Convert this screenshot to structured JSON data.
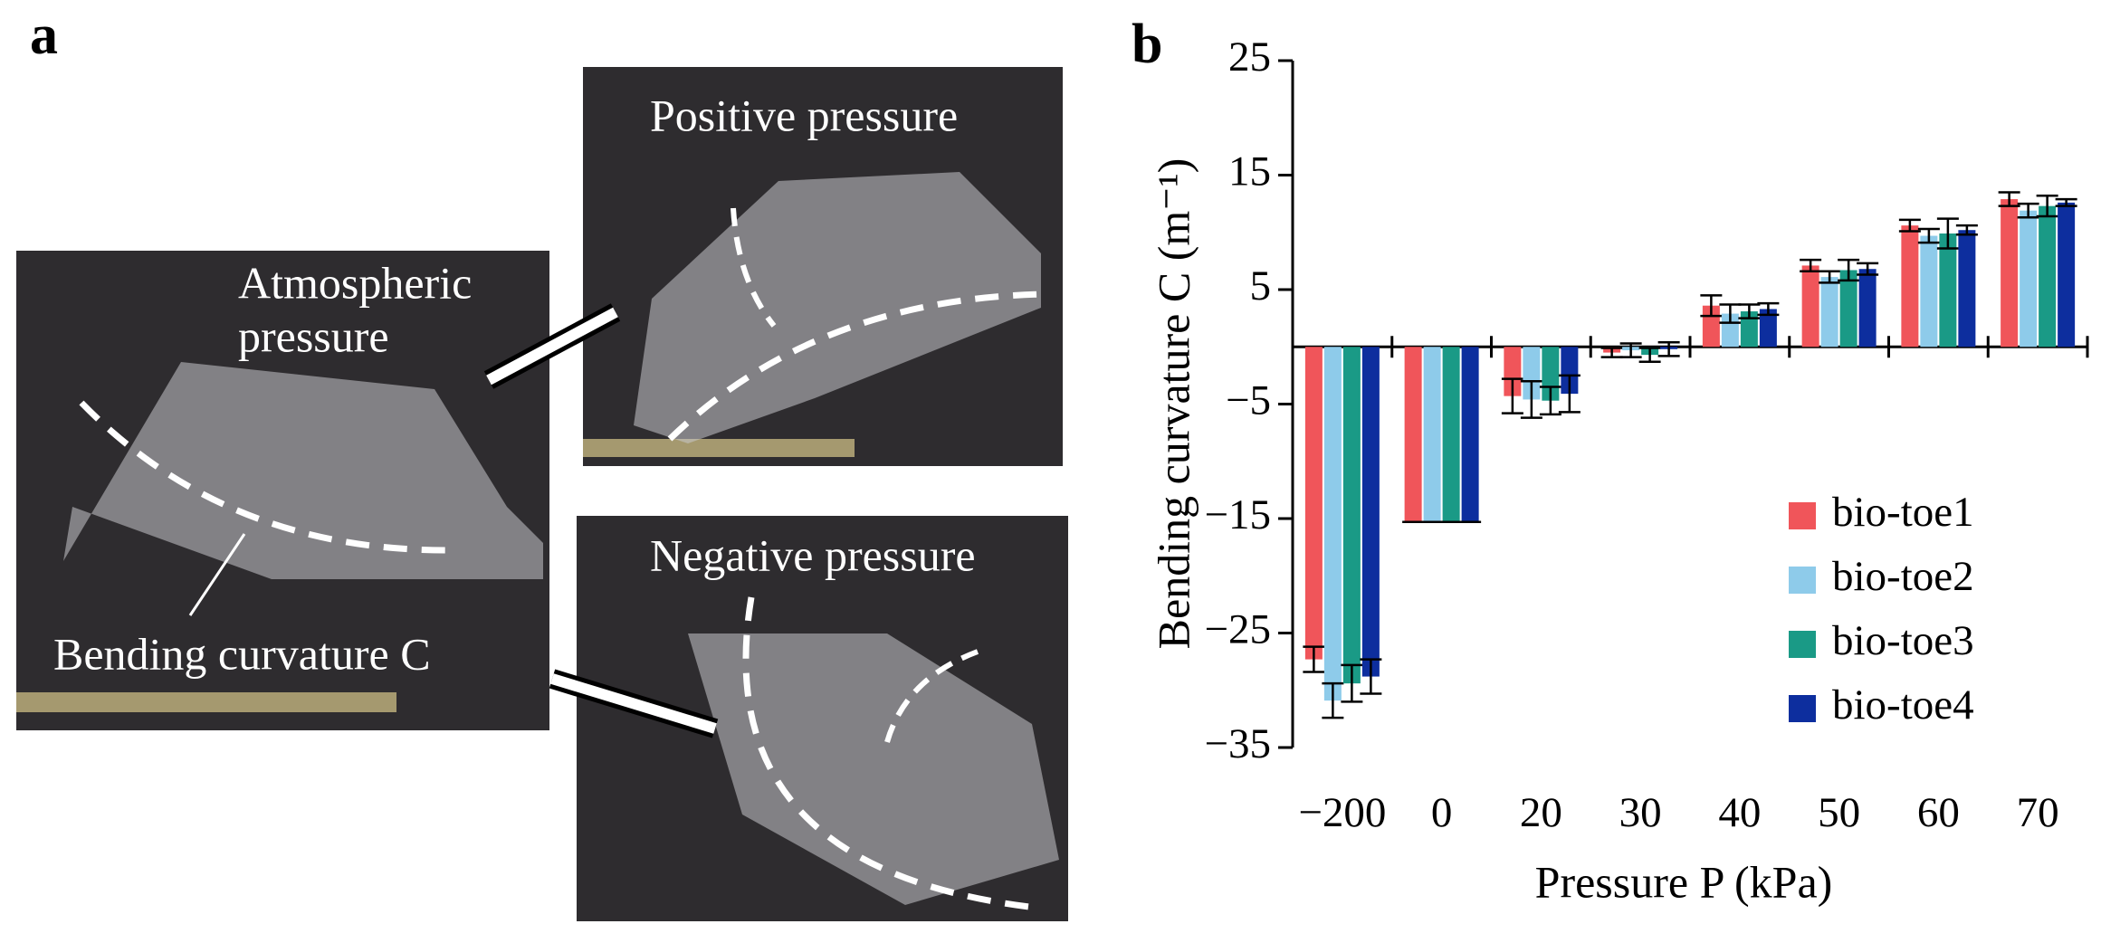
{
  "panel_labels": [
    "a",
    "b"
  ],
  "panel_a": {
    "atmospheric": [
      "Atmospheric",
      "pressure"
    ],
    "positive": "Positive pressure",
    "negative": "Negative pressure",
    "curvature": "Bending curvature C"
  },
  "chart_data": {
    "type": "bar",
    "ylabel": "Bending curvature C (m⁻¹)",
    "xlabel": "Pressure P (kPa)",
    "categories": [
      "−200",
      "0",
      "20",
      "30",
      "40",
      "50",
      "60",
      "70"
    ],
    "series": [
      {
        "name": "bio-toe1",
        "color": "#f0555a",
        "values": [
          -27.3,
          -15.3,
          -4.3,
          -0.5,
          3.6,
          7.1,
          10.6,
          12.9
        ],
        "errors": [
          1.1,
          0,
          1.5,
          0.4,
          0.9,
          0.5,
          0.5,
          0.6
        ]
      },
      {
        "name": "bio-toe2",
        "color": "#8ecbea",
        "values": [
          -30.9,
          -15.3,
          -4.6,
          -0.3,
          2.9,
          6.1,
          9.7,
          11.9
        ],
        "errors": [
          1.5,
          0,
          1.6,
          0.6,
          0.8,
          0.5,
          0.6,
          0.6
        ]
      },
      {
        "name": "bio-toe3",
        "color": "#1a9a86",
        "values": [
          -29.4,
          -15.3,
          -4.7,
          -0.7,
          3.1,
          6.7,
          9.9,
          12.3
        ],
        "errors": [
          1.6,
          0,
          1.2,
          0.6,
          0.6,
          0.9,
          1.3,
          0.9
        ]
      },
      {
        "name": "bio-toe4",
        "color": "#0d2e9e",
        "values": [
          -28.8,
          -15.3,
          -4.1,
          -0.2,
          3.3,
          6.8,
          10.2,
          12.6
        ],
        "errors": [
          1.5,
          0,
          1.6,
          0.6,
          0.5,
          0.5,
          0.4,
          0.3
        ]
      }
    ],
    "ylim": [
      -35,
      25
    ],
    "yticks": [
      25,
      15,
      5,
      {
        "value": -5,
        "label": "−5"
      },
      {
        "value": -15,
        "label": "−15"
      },
      {
        "value": -25,
        "label": "−25"
      },
      {
        "value": -35,
        "label": "−35"
      }
    ],
    "legend": "lower right"
  }
}
